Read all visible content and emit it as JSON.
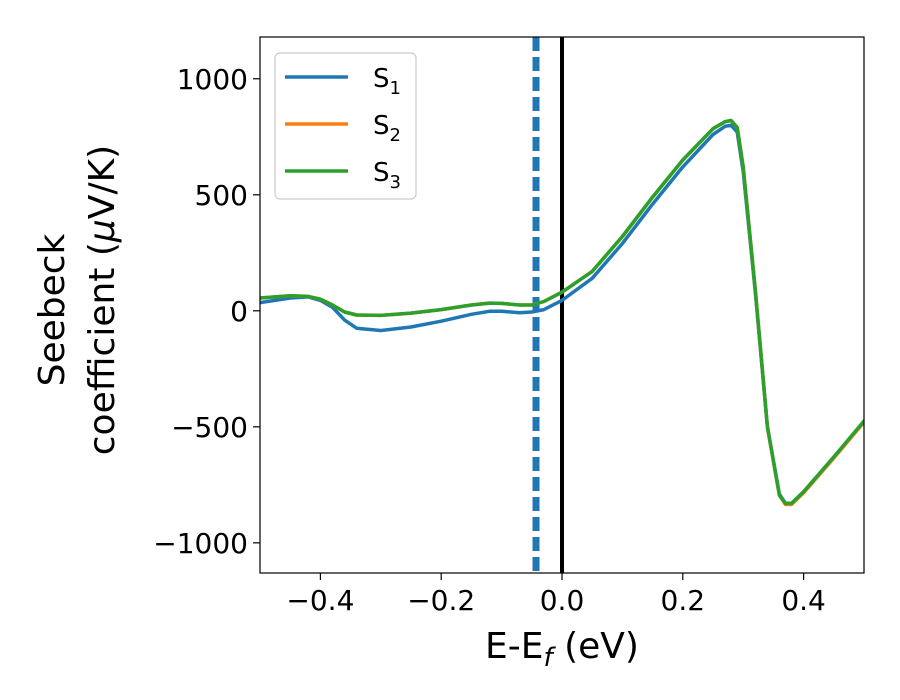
{
  "chart_data": {
    "type": "line",
    "xlabel": "E-E",
    "xlabel_sub": "f",
    "xlabel_unit": " (eV)",
    "ylabel_line1": "Seebeck",
    "ylabel_line2_pre": "coefficient  (",
    "ylabel_mu": "μ",
    "ylabel_line2_post": "V/K)",
    "xlim": [
      -0.5,
      0.5
    ],
    "ylim": [
      -1130,
      1180
    ],
    "xticks": [
      -0.4,
      -0.2,
      0.0,
      0.2,
      0.4
    ],
    "xtick_labels": [
      "−0.4",
      "−0.2",
      "0.0",
      "0.2",
      "0.4"
    ],
    "yticks": [
      -1000,
      -500,
      0,
      500,
      1000
    ],
    "ytick_labels": [
      "−1000",
      "−500",
      "0",
      "500",
      "1000"
    ],
    "legend_position": "top-left",
    "grid": false,
    "vlines": [
      {
        "x": -0.043,
        "style": "dashed",
        "color": "#1f77b4"
      },
      {
        "x": 0.0,
        "style": "solid",
        "color": "#000000"
      }
    ],
    "series": [
      {
        "name": "S",
        "sub": "1",
        "color": "#1f77b4",
        "x": [
          -0.5,
          -0.45,
          -0.42,
          -0.4,
          -0.38,
          -0.36,
          -0.34,
          -0.3,
          -0.25,
          -0.2,
          -0.15,
          -0.12,
          -0.1,
          -0.07,
          -0.05,
          -0.03,
          0.0,
          0.05,
          0.1,
          0.15,
          0.2,
          0.25,
          0.27,
          0.28,
          0.29,
          0.3,
          0.32,
          0.34,
          0.36,
          0.37,
          0.38,
          0.4,
          0.45,
          0.5
        ],
        "y": [
          35,
          55,
          60,
          45,
          15,
          -40,
          -75,
          -85,
          -70,
          -45,
          -15,
          -2,
          -2,
          -8,
          -5,
          5,
          45,
          140,
          290,
          460,
          620,
          760,
          795,
          800,
          770,
          600,
          80,
          -500,
          -790,
          -830,
          -830,
          -780,
          -630,
          -480
        ]
      },
      {
        "name": "S",
        "sub": "2",
        "color": "#ff7f0e",
        "x": [
          -0.5,
          -0.45,
          -0.42,
          -0.4,
          -0.38,
          -0.36,
          -0.34,
          -0.3,
          -0.25,
          -0.2,
          -0.15,
          -0.12,
          -0.1,
          -0.07,
          -0.05,
          -0.03,
          0.0,
          0.05,
          0.1,
          0.15,
          0.2,
          0.25,
          0.27,
          0.28,
          0.29,
          0.3,
          0.32,
          0.34,
          0.36,
          0.37,
          0.38,
          0.4,
          0.45,
          0.5
        ],
        "y": [
          55,
          65,
          62,
          50,
          25,
          -5,
          -18,
          -20,
          -10,
          5,
          25,
          33,
          32,
          25,
          25,
          40,
          80,
          170,
          320,
          490,
          650,
          785,
          815,
          820,
          790,
          620,
          90,
          -500,
          -795,
          -835,
          -835,
          -785,
          -635,
          -480
        ]
      },
      {
        "name": "S",
        "sub": "3",
        "color": "#2ca02c",
        "x": [
          -0.5,
          -0.45,
          -0.42,
          -0.4,
          -0.38,
          -0.36,
          -0.34,
          -0.3,
          -0.25,
          -0.2,
          -0.15,
          -0.12,
          -0.1,
          -0.07,
          -0.05,
          -0.03,
          0.0,
          0.05,
          0.1,
          0.15,
          0.2,
          0.25,
          0.27,
          0.28,
          0.29,
          0.3,
          0.32,
          0.34,
          0.36,
          0.37,
          0.38,
          0.4,
          0.45,
          0.5
        ],
        "y": [
          55,
          65,
          62,
          50,
          25,
          -5,
          -18,
          -20,
          -10,
          5,
          25,
          33,
          32,
          25,
          25,
          40,
          80,
          170,
          320,
          490,
          650,
          785,
          815,
          820,
          790,
          620,
          90,
          -500,
          -795,
          -830,
          -830,
          -780,
          -630,
          -475
        ]
      }
    ]
  }
}
